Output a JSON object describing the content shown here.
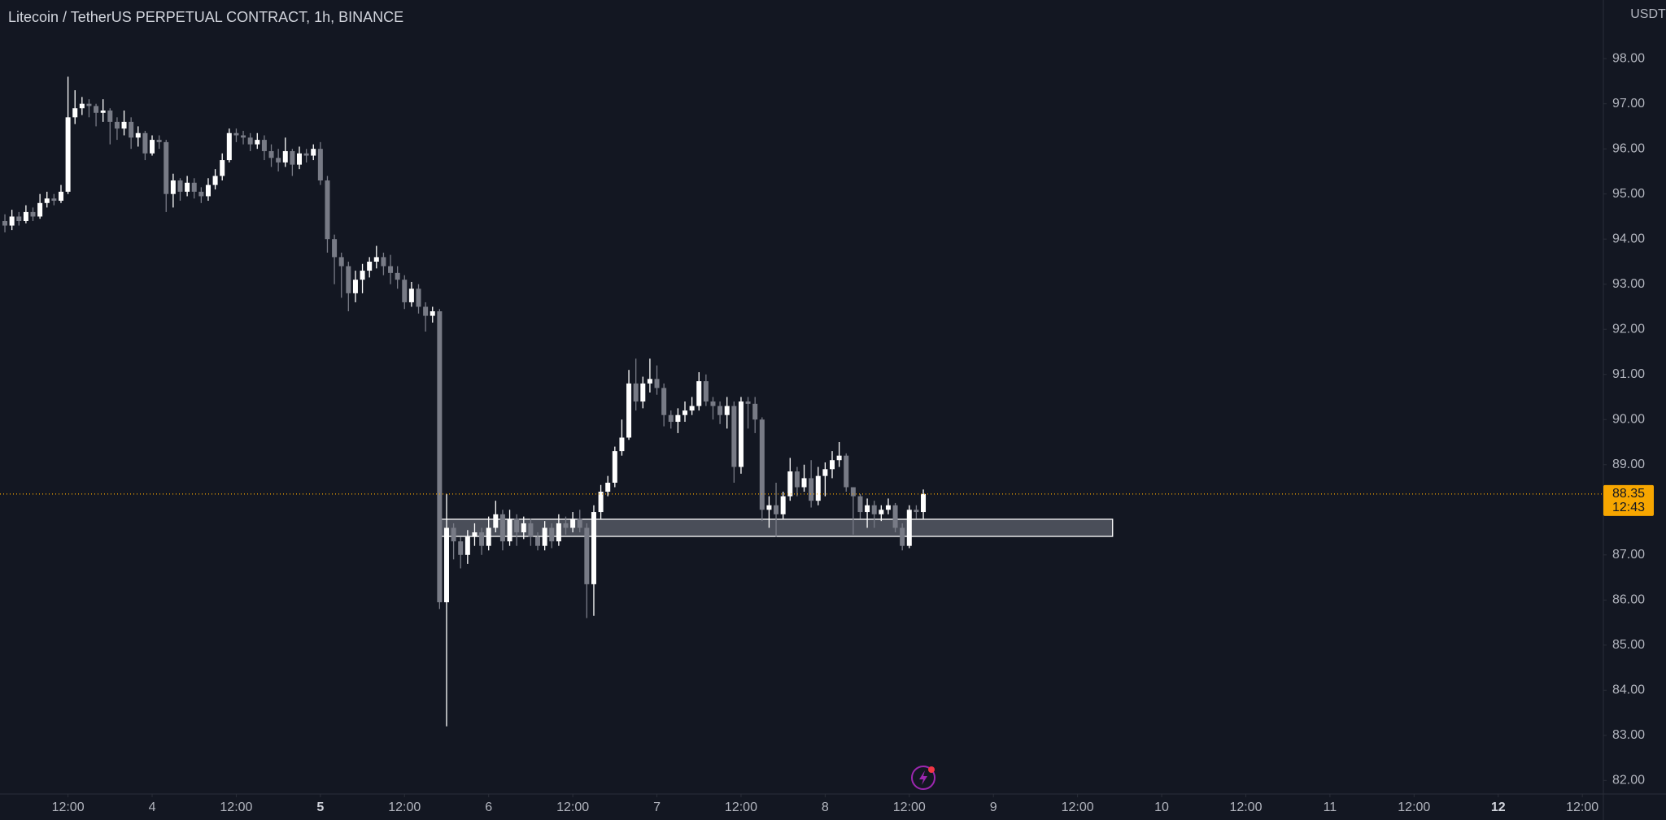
{
  "chart_data": {
    "type": "candlestick",
    "title": "Litecoin / TetherUS PERPETUAL CONTRACT, 1h, BINANCE",
    "y_axis_label": "USDT",
    "up_color": "#ffffff",
    "down_color": "#787b86",
    "x": [
      3,
      4,
      5,
      6,
      7,
      8,
      9,
      10,
      11,
      12,
      13,
      14,
      15,
      16,
      17,
      18,
      19,
      20,
      21,
      22,
      23,
      24,
      25,
      26,
      27,
      28,
      29,
      30,
      31,
      32,
      33,
      34,
      35,
      36,
      37,
      38,
      39,
      40,
      41,
      42,
      43,
      44,
      45,
      46,
      47,
      48,
      49,
      50,
      51,
      52,
      53,
      54,
      55,
      56,
      57,
      58,
      59,
      60,
      61,
      62,
      63,
      64,
      65,
      66,
      67,
      68,
      69,
      70,
      71,
      72,
      73,
      74,
      75,
      76,
      77,
      78,
      79,
      80,
      81,
      82,
      83,
      84,
      85,
      86,
      87,
      88,
      89,
      90,
      91,
      92,
      93,
      94,
      95,
      96,
      97,
      98,
      99,
      100,
      101,
      102,
      103,
      104,
      105,
      106,
      107,
      108,
      109,
      110,
      111,
      112,
      113,
      114,
      115,
      116,
      117,
      118,
      119,
      120,
      121,
      122,
      123,
      124,
      125,
      126,
      127,
      128,
      129,
      130,
      131,
      132,
      133,
      134
    ],
    "open": [
      94.4,
      94.3,
      94.5,
      94.4,
      94.6,
      94.5,
      94.8,
      94.9,
      94.85,
      95.05,
      96.7,
      96.9,
      97.0,
      96.95,
      96.8,
      96.85,
      96.6,
      96.45,
      96.6,
      96.25,
      96.35,
      95.9,
      96.2,
      96.15,
      95.0,
      95.3,
      95.05,
      95.25,
      95.05,
      94.95,
      95.2,
      95.4,
      95.75,
      96.35,
      96.3,
      96.25,
      96.1,
      96.2,
      95.95,
      95.8,
      95.7,
      95.95,
      95.65,
      95.9,
      95.85,
      96.0,
      95.3,
      94.0,
      93.6,
      93.4,
      92.8,
      93.1,
      93.3,
      93.5,
      93.6,
      93.4,
      93.25,
      93.1,
      92.6,
      92.9,
      92.5,
      92.3,
      92.4,
      85.95,
      87.6,
      87.3,
      87.0,
      87.4,
      87.5,
      87.2,
      87.6,
      87.9,
      87.3,
      87.8,
      87.5,
      87.7,
      87.4,
      87.2,
      87.6,
      87.3,
      87.7,
      87.6,
      87.8,
      87.6,
      86.35,
      87.95,
      88.4,
      88.6,
      89.3,
      89.6,
      90.8,
      90.4,
      90.8,
      90.9,
      90.7,
      90.1,
      89.95,
      90.1,
      90.2,
      90.3,
      90.85,
      90.4,
      90.3,
      90.1,
      90.3,
      88.95,
      90.4,
      90.35,
      90.0,
      88.0,
      88.1,
      87.9,
      88.3,
      88.85,
      88.5,
      88.7,
      88.2,
      88.75,
      88.9,
      89.1,
      89.2,
      88.5,
      88.3,
      87.95,
      88.1,
      87.9,
      88.0,
      88.1,
      87.6,
      87.2,
      88.0,
      87.95
    ],
    "high": [
      94.55,
      94.65,
      94.6,
      94.75,
      94.7,
      95.0,
      95.05,
      95.0,
      95.2,
      97.6,
      97.3,
      97.15,
      97.1,
      97.0,
      97.1,
      96.9,
      96.7,
      96.85,
      96.7,
      96.5,
      96.4,
      96.3,
      96.3,
      96.2,
      95.45,
      95.35,
      95.4,
      95.35,
      95.15,
      95.35,
      95.55,
      95.9,
      96.45,
      96.45,
      96.4,
      96.35,
      96.35,
      96.3,
      96.1,
      96.0,
      96.25,
      96.0,
      96.05,
      96.0,
      96.1,
      96.15,
      95.4,
      94.1,
      93.7,
      93.5,
      93.3,
      93.45,
      93.6,
      93.85,
      93.7,
      93.65,
      93.4,
      93.2,
      93.05,
      93.0,
      92.6,
      92.5,
      92.45,
      88.35,
      87.7,
      87.4,
      87.55,
      87.7,
      87.6,
      87.85,
      88.2,
      88.0,
      88.0,
      87.9,
      87.85,
      87.8,
      87.5,
      87.75,
      87.7,
      87.9,
      87.85,
      87.95,
      88.0,
      87.7,
      88.1,
      88.55,
      88.75,
      89.4,
      90.0,
      91.1,
      91.35,
      90.95,
      91.35,
      91.2,
      90.8,
      90.2,
      90.25,
      90.4,
      90.5,
      91.05,
      91.0,
      90.5,
      90.4,
      90.5,
      90.4,
      90.5,
      90.5,
      90.5,
      90.05,
      88.3,
      88.6,
      88.4,
      89.15,
      88.95,
      89.0,
      89.1,
      88.95,
      89.05,
      89.3,
      89.5,
      89.25,
      88.5,
      88.35,
      88.25,
      88.2,
      88.1,
      88.25,
      88.15,
      87.7,
      88.1,
      88.1,
      88.45
    ],
    "low": [
      94.15,
      94.2,
      94.3,
      94.35,
      94.4,
      94.45,
      94.7,
      94.75,
      94.8,
      95.0,
      96.55,
      96.75,
      96.7,
      96.5,
      96.6,
      96.1,
      96.2,
      96.3,
      96.0,
      96.05,
      95.75,
      95.85,
      96.0,
      94.6,
      94.7,
      94.85,
      94.95,
      94.9,
      94.8,
      94.85,
      95.1,
      95.3,
      95.7,
      96.15,
      96.1,
      95.95,
      96.0,
      95.75,
      95.6,
      95.5,
      95.6,
      95.4,
      95.55,
      95.7,
      95.75,
      95.2,
      93.7,
      93.0,
      92.7,
      92.4,
      92.6,
      92.8,
      93.15,
      93.35,
      93.2,
      93.0,
      92.9,
      92.45,
      92.5,
      92.35,
      91.95,
      92.15,
      85.8,
      83.2,
      86.9,
      86.7,
      86.8,
      87.2,
      87.0,
      87.1,
      87.5,
      87.1,
      87.2,
      87.2,
      87.35,
      87.2,
      87.1,
      87.1,
      87.15,
      87.2,
      87.45,
      87.5,
      87.5,
      85.6,
      85.65,
      87.8,
      88.3,
      88.5,
      89.2,
      89.55,
      90.2,
      90.25,
      90.6,
      90.55,
      89.85,
      89.8,
      89.7,
      89.95,
      90.1,
      90.2,
      90.3,
      90.0,
      89.9,
      89.8,
      88.6,
      88.8,
      89.8,
      89.7,
      87.75,
      87.6,
      87.4,
      87.8,
      88.2,
      88.3,
      88.4,
      88.05,
      88.1,
      88.3,
      88.7,
      88.95,
      88.4,
      87.45,
      87.8,
      87.6,
      87.6,
      87.75,
      87.9,
      87.5,
      87.1,
      87.15,
      87.8,
      87.8
    ],
    "close": [
      94.3,
      94.5,
      94.4,
      94.6,
      94.5,
      94.8,
      94.9,
      94.85,
      95.05,
      96.7,
      96.9,
      97.0,
      96.95,
      96.8,
      96.85,
      96.6,
      96.45,
      96.6,
      96.25,
      96.35,
      95.9,
      96.2,
      96.15,
      95.0,
      95.3,
      95.05,
      95.25,
      95.05,
      94.95,
      95.2,
      95.4,
      95.75,
      96.35,
      96.3,
      96.25,
      96.1,
      96.2,
      95.95,
      95.8,
      95.7,
      95.95,
      95.65,
      95.9,
      95.85,
      96.0,
      95.3,
      94.0,
      93.6,
      93.4,
      92.8,
      93.1,
      93.3,
      93.5,
      93.6,
      93.4,
      93.25,
      93.1,
      92.6,
      92.9,
      92.5,
      92.3,
      92.4,
      85.95,
      87.6,
      87.3,
      87.0,
      87.4,
      87.5,
      87.2,
      87.6,
      87.9,
      87.3,
      87.8,
      87.5,
      87.7,
      87.4,
      87.2,
      87.6,
      87.3,
      87.7,
      87.6,
      87.8,
      87.6,
      86.35,
      87.95,
      88.4,
      88.6,
      89.3,
      89.6,
      90.8,
      90.4,
      90.8,
      90.9,
      90.7,
      90.1,
      89.95,
      90.1,
      90.2,
      90.3,
      90.85,
      90.4,
      90.3,
      90.1,
      90.3,
      88.95,
      90.4,
      90.35,
      90.0,
      88.0,
      88.1,
      87.9,
      88.3,
      88.85,
      88.5,
      88.7,
      88.2,
      88.75,
      88.9,
      89.1,
      89.2,
      88.5,
      88.3,
      87.95,
      88.1,
      87.9,
      88.0,
      88.1,
      87.6,
      87.2,
      88.0,
      87.95,
      88.35
    ],
    "xlim": [
      2.3,
      231
    ],
    "ylim": [
      81.7,
      99.3
    ],
    "xticks": [
      {
        "value": 12,
        "label": "12:00"
      },
      {
        "value": 24,
        "label": "4"
      },
      {
        "value": 36,
        "label": "12:00"
      },
      {
        "value": 48,
        "label": "5",
        "bold": true
      },
      {
        "value": 60,
        "label": "12:00"
      },
      {
        "value": 72,
        "label": "6"
      },
      {
        "value": 84,
        "label": "12:00"
      },
      {
        "value": 96,
        "label": "7"
      },
      {
        "value": 108,
        "label": "12:00"
      },
      {
        "value": 120,
        "label": "8"
      },
      {
        "value": 132,
        "label": "12:00"
      },
      {
        "value": 144,
        "label": "9"
      },
      {
        "value": 156,
        "label": "12:00"
      },
      {
        "value": 168,
        "label": "10"
      },
      {
        "value": 180,
        "label": "12:00"
      },
      {
        "value": 192,
        "label": "11"
      },
      {
        "value": 204,
        "label": "12:00"
      },
      {
        "value": 216,
        "label": "12",
        "bold": true
      },
      {
        "value": 228,
        "label": "12:00"
      }
    ],
    "yticks": [
      {
        "value": 82,
        "label": "82.00"
      },
      {
        "value": 83,
        "label": "83.00"
      },
      {
        "value": 84,
        "label": "84.00"
      },
      {
        "value": 85,
        "label": "85.00"
      },
      {
        "value": 86,
        "label": "86.00"
      },
      {
        "value": 87,
        "label": "87.00"
      },
      {
        "value": 88,
        "label": "88.00"
      },
      {
        "value": 89,
        "label": "89.00"
      },
      {
        "value": 90,
        "label": "90.00"
      },
      {
        "value": 91,
        "label": "91.00"
      },
      {
        "value": 92,
        "label": "92.00"
      },
      {
        "value": 93,
        "label": "93.00"
      },
      {
        "value": 94,
        "label": "94.00"
      },
      {
        "value": 95,
        "label": "95.00"
      },
      {
        "value": 96,
        "label": "96.00"
      },
      {
        "value": 97,
        "label": "97.00"
      },
      {
        "value": 98,
        "label": "98.00"
      }
    ],
    "zone": {
      "x": [
        65,
        161
      ],
      "y": [
        87.41,
        87.79
      ]
    },
    "last_price": {
      "value": 88.35,
      "countdown": "12:43",
      "color": "#f7a600"
    }
  }
}
